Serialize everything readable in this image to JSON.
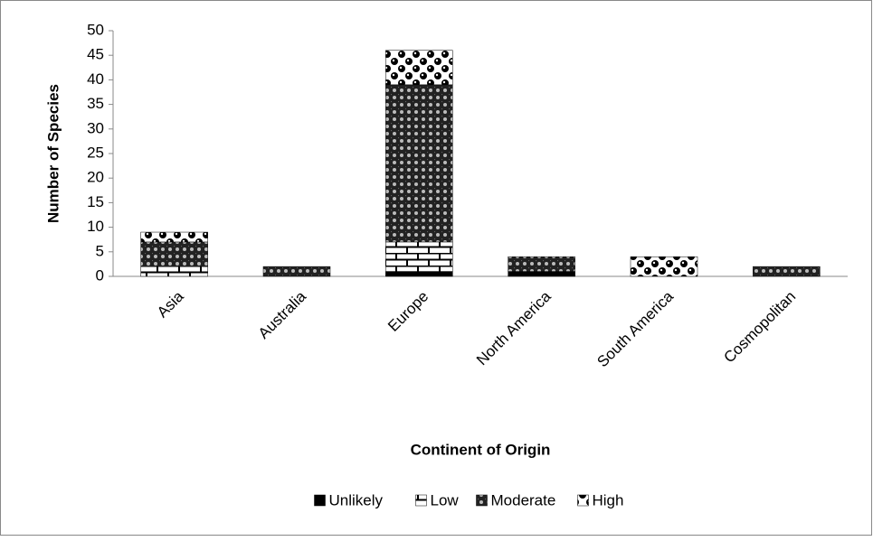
{
  "chart_data": {
    "type": "stacked_bar",
    "x_label": "Continent of Origin",
    "y_label": "Number of Species",
    "categories": [
      "Asia",
      "Australia",
      "Europe",
      "North America",
      "South America",
      "Cosmopolitan"
    ],
    "series": [
      {
        "name": "Unlikely",
        "color": "#000000",
        "values": [
          0,
          0,
          1,
          1,
          0,
          0
        ]
      },
      {
        "name": "Low",
        "color": "#000000",
        "values": [
          2,
          0,
          6,
          0,
          0,
          0
        ]
      },
      {
        "name": "Moderate",
        "color": "#000000",
        "values": [
          5,
          2,
          32,
          3,
          0,
          2
        ]
      },
      {
        "name": "High",
        "color": "#000000",
        "values": [
          2,
          0,
          7,
          0,
          4,
          0
        ]
      }
    ],
    "ylim": [
      0,
      50
    ],
    "yticks": [
      0,
      5,
      10,
      15,
      20,
      25,
      30,
      35,
      40,
      45,
      50
    ],
    "legend": "bottom"
  }
}
